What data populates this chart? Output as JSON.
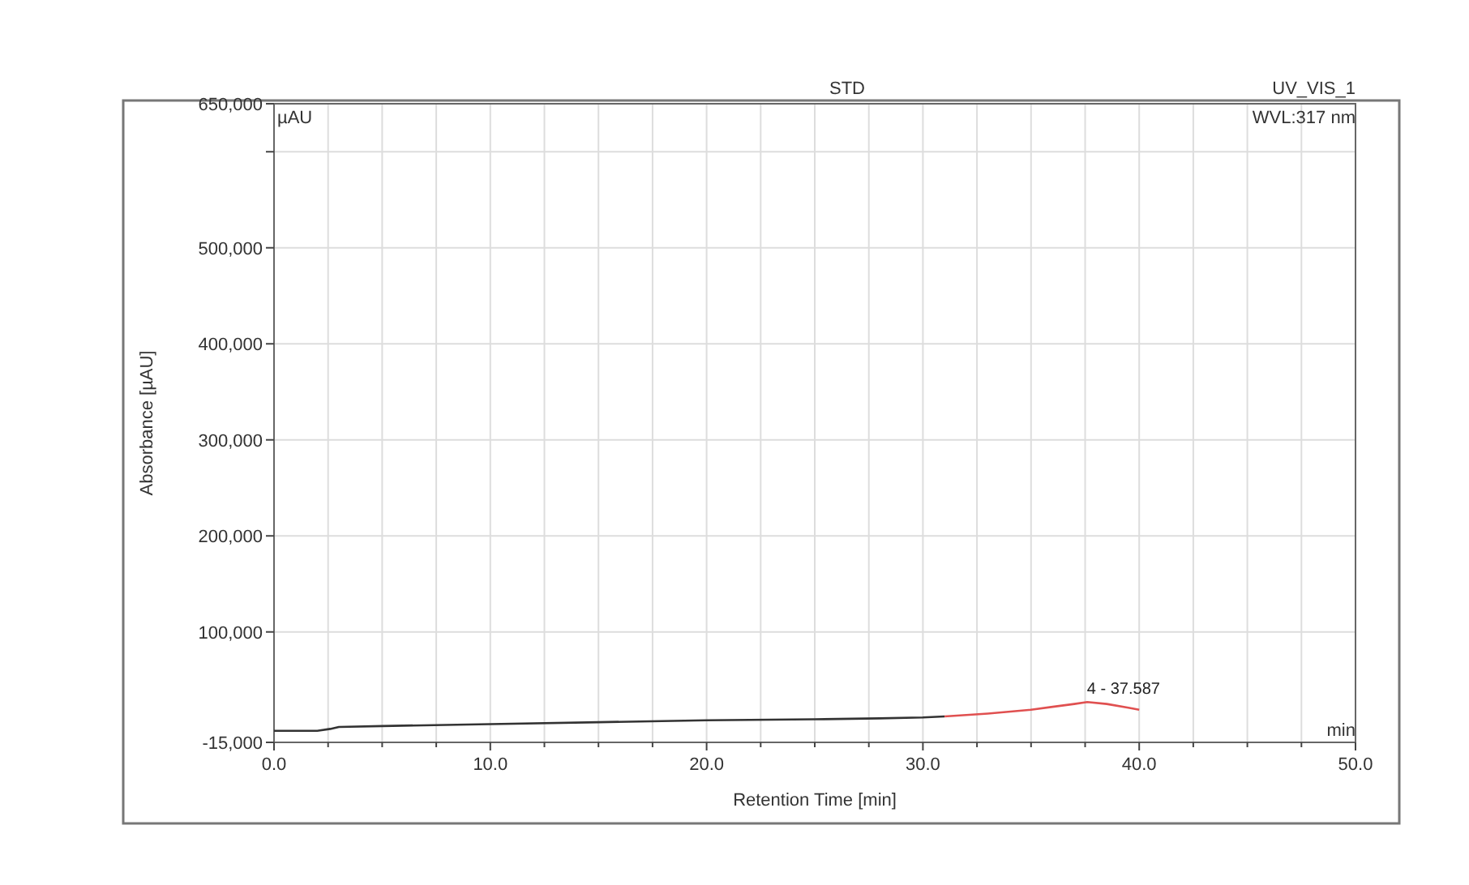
{
  "chart_data": {
    "type": "line",
    "title": "STD",
    "xlabel": "Retention Time [min]",
    "ylabel": "Absorbance [µAU]",
    "annotations": [
      "UV_VIS_1",
      "WVL:317 nm",
      "µAU",
      "min",
      {
        "text": "4 - 37.587",
        "x": 37.587,
        "y": 27000
      }
    ],
    "series": [
      {
        "color": "#333333",
        "x": [
          0,
          2.0,
          2.6,
          3.0,
          5,
          10,
          15,
          20,
          25,
          28,
          30,
          31
        ],
        "values": [
          -3000,
          -3000,
          -1000,
          1000,
          2000,
          4000,
          6000,
          8000,
          9000,
          10000,
          11000,
          12000
        ]
      },
      {
        "color": "#e05050",
        "x": [
          31,
          33,
          35,
          36,
          37,
          37.6,
          38.5,
          39.5,
          40
        ],
        "values": [
          12000,
          15000,
          19000,
          22000,
          25000,
          27000,
          25000,
          21000,
          19000
        ]
      }
    ],
    "xlim": [
      0,
      50
    ],
    "xticks": [
      {
        "value": 0,
        "label": "0.0"
      },
      {
        "value": 2.5,
        "label": null
      },
      {
        "value": 5,
        "label": null
      },
      {
        "value": 7.5,
        "label": null
      },
      {
        "value": 10,
        "label": "10.0"
      },
      {
        "value": 12.5,
        "label": null
      },
      {
        "value": 15,
        "label": null
      },
      {
        "value": 17.5,
        "label": null
      },
      {
        "value": 20,
        "label": "20.0"
      },
      {
        "value": 22.5,
        "label": null
      },
      {
        "value": 25,
        "label": null
      },
      {
        "value": 27.5,
        "label": null
      },
      {
        "value": 30,
        "label": "30.0"
      },
      {
        "value": 32.5,
        "label": null
      },
      {
        "value": 35,
        "label": null
      },
      {
        "value": 37.5,
        "label": null
      },
      {
        "value": 40,
        "label": "40.0"
      },
      {
        "value": 42.5,
        "label": null
      },
      {
        "value": 45,
        "label": null
      },
      {
        "value": 47.5,
        "label": null
      },
      {
        "value": 50,
        "label": "50.0"
      }
    ],
    "ylim": [
      -15000,
      650000
    ],
    "yticks": [
      {
        "value": -15000,
        "label": "-15,000"
      },
      {
        "value": 100000,
        "label": "100,000"
      },
      {
        "value": 200000,
        "label": "200,000"
      },
      {
        "value": 300000,
        "label": "300,000"
      },
      {
        "value": 400000,
        "label": "400,000"
      },
      {
        "value": 500000,
        "label": "500,000"
      },
      {
        "value": 600000,
        "label": null
      },
      {
        "value": 650000,
        "label": "650,000"
      }
    ],
    "grid": true,
    "line_style": "solid"
  }
}
